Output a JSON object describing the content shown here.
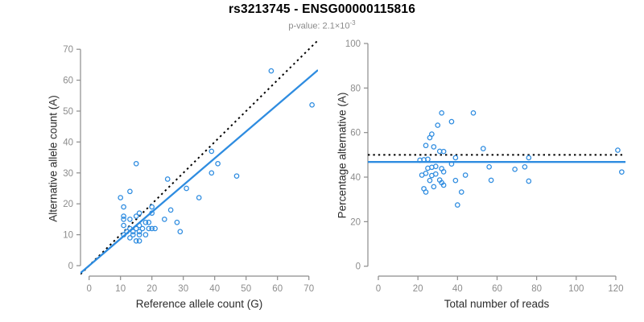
{
  "header": {
    "title": "rs3213745 - ENSG00000115816",
    "subtitle_prefix": "p-value: 2.1×10",
    "subtitle_exponent": "-3"
  },
  "colors": {
    "points": "#2E8CE0",
    "fit_line": "#2E8CE0",
    "reference_line": "#000000",
    "axis": "#8c8c8c",
    "tick_label": "#8c8c8c",
    "background": "#ffffff"
  },
  "chart_data": [
    {
      "id": "allele-count-scatter",
      "type": "scatter",
      "title": "",
      "xlabel": "Reference allele count (G)",
      "ylabel": "Alternative allele count (A)",
      "xlim": [
        0,
        70
      ],
      "ylim": [
        0,
        70
      ],
      "xticks": [
        0,
        10,
        20,
        30,
        40,
        50,
        60,
        70
      ],
      "yticks": [
        0,
        10,
        20,
        30,
        40,
        50,
        60,
        70
      ],
      "grid": false,
      "legend": "none",
      "marker": "open-circle",
      "x": [
        58,
        71,
        15,
        39,
        41,
        39,
        47,
        25,
        31,
        13,
        10,
        35,
        26,
        28,
        29,
        11,
        20,
        20,
        16,
        11,
        15,
        11,
        13,
        11,
        16,
        13,
        15,
        17,
        19,
        20,
        21,
        12,
        14,
        16,
        11,
        14,
        16,
        18,
        18,
        19,
        24,
        13,
        15,
        16
      ],
      "y": [
        63,
        52,
        33,
        37,
        33,
        30,
        29,
        28,
        25,
        24,
        22,
        22,
        18,
        14,
        11,
        19,
        19,
        17,
        17,
        16,
        16,
        15,
        15,
        13,
        13,
        12,
        12,
        12,
        12,
        12,
        12,
        11,
        11,
        11,
        10,
        10,
        10,
        10,
        14,
        14,
        15,
        9,
        8,
        8
      ],
      "lines": [
        {
          "name": "identity-line",
          "slope": 1,
          "intercept": 0,
          "style": "dotted",
          "color": "#000000"
        },
        {
          "name": "regression-line",
          "slope": 0.868,
          "intercept": 0,
          "style": "solid",
          "color": "#2E8CE0"
        }
      ]
    },
    {
      "id": "percentage-vs-total-reads-scatter",
      "type": "scatter",
      "title": "",
      "xlabel": "Total number of reads",
      "ylabel": "Percentage alternative (A)",
      "xlim": [
        0,
        120
      ],
      "ylim": [
        0,
        100
      ],
      "xticks": [
        0,
        20,
        40,
        60,
        80,
        100,
        120
      ],
      "yticks": [
        0,
        20,
        40,
        60,
        80,
        100
      ],
      "grid": false,
      "legend": "none",
      "marker": "open-circle",
      "x": [
        121,
        123,
        48,
        76,
        74,
        69,
        76,
        53,
        56,
        37,
        32,
        57,
        44,
        42,
        40,
        30,
        39,
        37,
        33,
        27,
        31,
        26,
        28,
        24,
        29,
        25,
        27,
        29,
        31,
        32,
        33,
        23,
        25,
        27,
        21,
        24,
        26,
        28,
        32,
        33,
        39,
        22,
        23,
        24
      ],
      "y": [
        52.1,
        42.3,
        68.8,
        48.7,
        44.6,
        43.5,
        38.2,
        52.8,
        44.6,
        64.9,
        68.8,
        38.6,
        40.9,
        33.3,
        27.5,
        63.3,
        48.7,
        45.9,
        51.5,
        59.3,
        51.6,
        57.7,
        53.6,
        54.2,
        44.8,
        48.0,
        44.4,
        41.4,
        38.7,
        37.5,
        36.4,
        47.8,
        44.0,
        40.7,
        47.6,
        41.7,
        38.5,
        35.7,
        43.8,
        42.4,
        38.5,
        40.9,
        34.8,
        33.3
      ],
      "lines": [
        {
          "name": "fifty-percent-line",
          "slope": 0,
          "intercept": 50,
          "style": "dotted",
          "color": "#000000"
        },
        {
          "name": "mean-percentage-line",
          "slope": 0,
          "intercept": 46.8,
          "style": "solid",
          "color": "#2E8CE0"
        }
      ]
    }
  ]
}
